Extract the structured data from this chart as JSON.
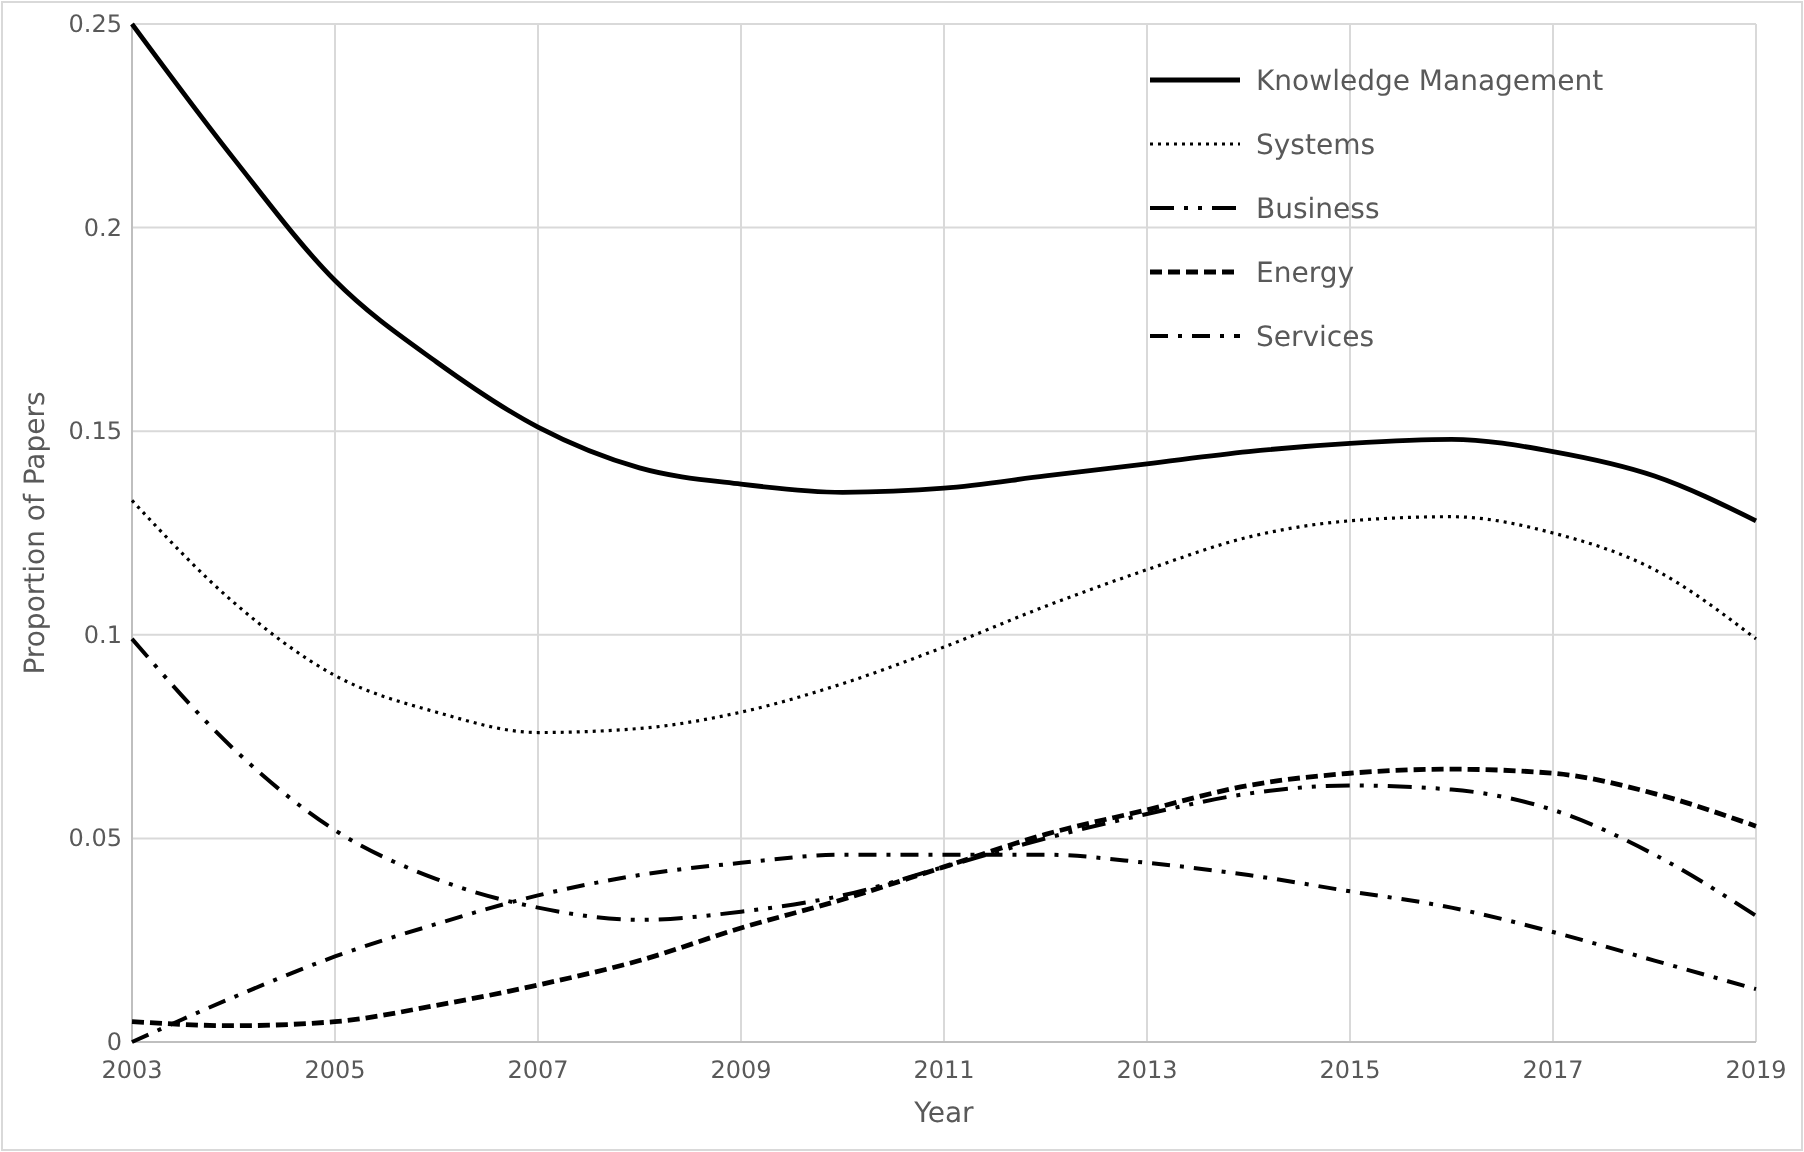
{
  "chart_data": {
    "type": "line",
    "xlabel": "Year",
    "ylabel": "Proportion of Papers",
    "x": [
      2003,
      2004,
      2005,
      2006,
      2007,
      2008,
      2009,
      2010,
      2011,
      2012,
      2013,
      2014,
      2015,
      2016,
      2017,
      2018,
      2019
    ],
    "xlim": [
      2003,
      2019
    ],
    "xticks": [
      2003,
      2005,
      2007,
      2009,
      2011,
      2013,
      2015,
      2017,
      2019
    ],
    "ylim": [
      0,
      0.25
    ],
    "yticks": [
      0,
      0.05,
      0.1,
      0.15,
      0.2,
      0.25
    ],
    "grid": true,
    "legend": "top right",
    "marker": "none",
    "series": [
      {
        "name": "Knowledge Management",
        "color": "#000000",
        "line_style": "solid",
        "values": [
          0.25,
          0.217,
          0.187,
          0.167,
          0.151,
          0.141,
          0.137,
          0.135,
          0.136,
          0.139,
          0.142,
          0.145,
          0.147,
          0.148,
          0.145,
          0.139,
          0.128
        ]
      },
      {
        "name": "Systems",
        "color": "#000000",
        "line_style": "dotted",
        "values": [
          0.133,
          0.108,
          0.09,
          0.081,
          0.076,
          0.077,
          0.081,
          0.088,
          0.097,
          0.107,
          0.116,
          0.124,
          0.128,
          0.129,
          0.125,
          0.116,
          0.099
        ]
      },
      {
        "name": "Business",
        "color": "#000000",
        "line_style": "dashdotdot",
        "values": [
          0.099,
          0.072,
          0.052,
          0.04,
          0.033,
          0.03,
          0.032,
          0.036,
          0.043,
          0.05,
          0.056,
          0.061,
          0.063,
          0.062,
          0.057,
          0.046,
          0.031
        ]
      },
      {
        "name": "Energy",
        "color": "#000000",
        "line_style": "dashed",
        "values": [
          0.005,
          0.004,
          0.005,
          0.009,
          0.014,
          0.02,
          0.028,
          0.035,
          0.043,
          0.051,
          0.057,
          0.063,
          0.066,
          0.067,
          0.066,
          0.061,
          0.053
        ]
      },
      {
        "name": "Services",
        "color": "#000000",
        "line_style": "dashdot",
        "values": [
          0,
          0.011,
          0.021,
          0.029,
          0.036,
          0.041,
          0.044,
          0.046,
          0.046,
          0.046,
          0.044,
          0.041,
          0.037,
          0.033,
          0.027,
          0.02,
          0.013
        ]
      }
    ]
  }
}
